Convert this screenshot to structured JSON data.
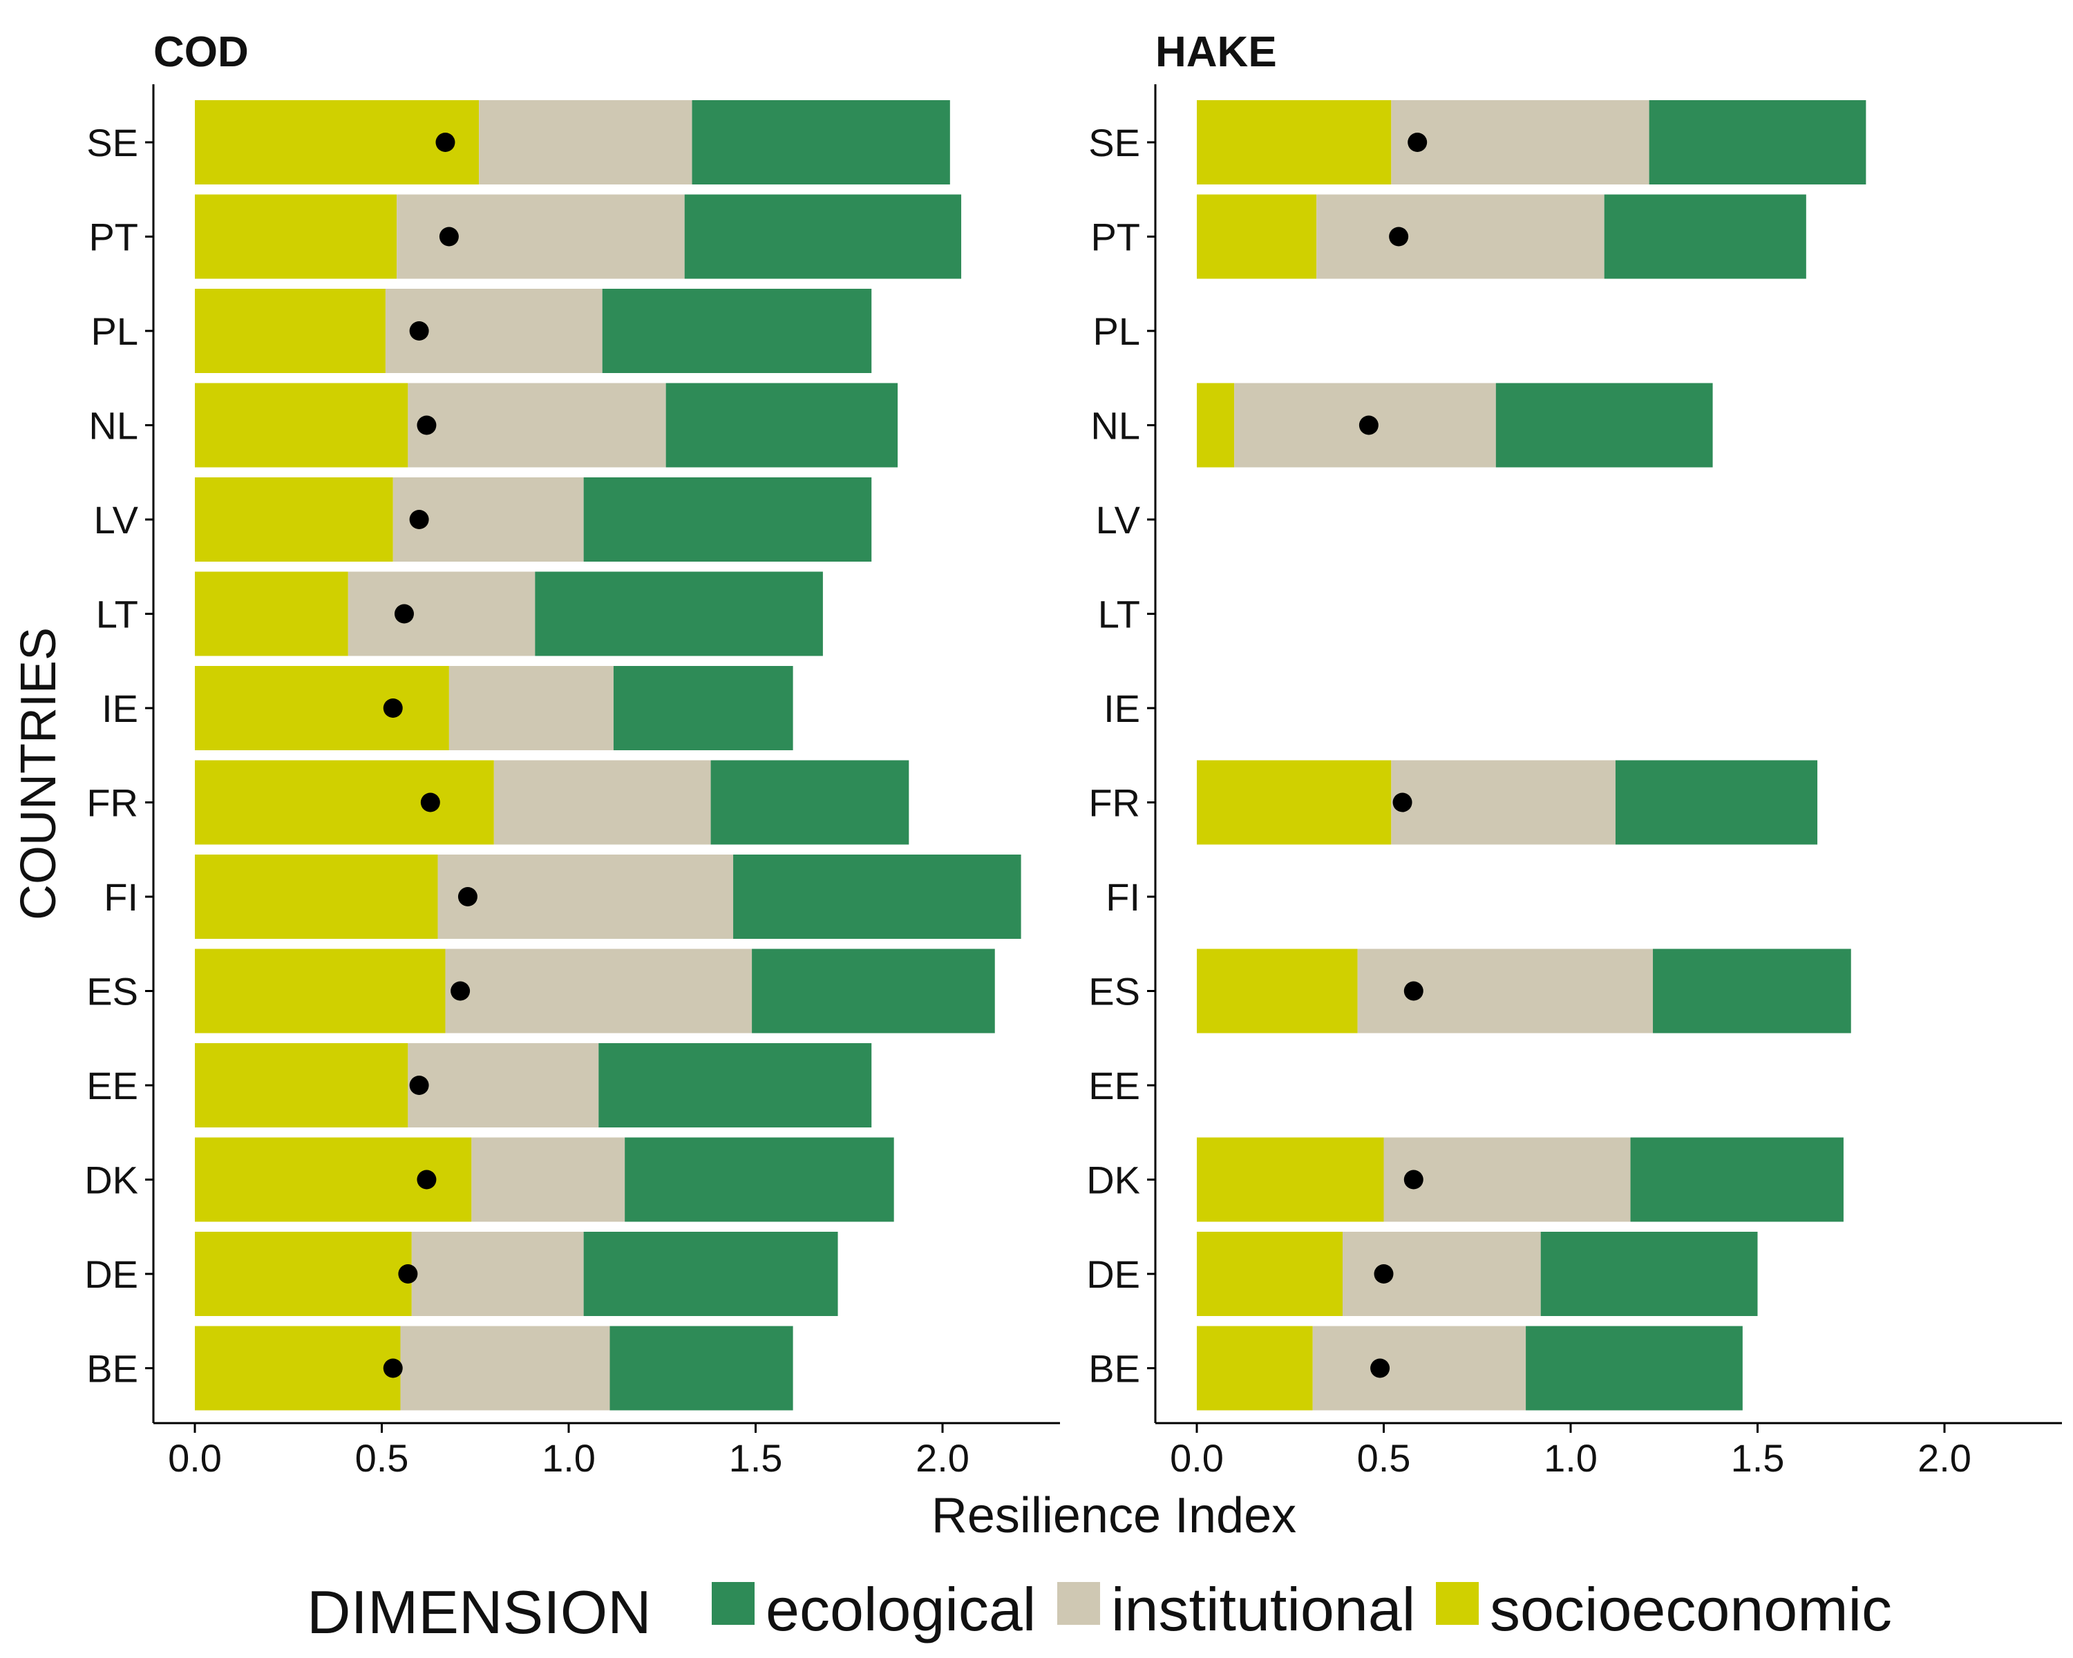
{
  "chart_data": {
    "type": "bar",
    "orientation": "horizontal",
    "stacked": true,
    "xlabel": "Resilience Index",
    "ylabel": "COUNTRIES",
    "xlim": [
      0,
      2.2
    ],
    "xticks": [
      "0.0",
      "0.5",
      "1.0",
      "1.5",
      "2.0"
    ],
    "grid": false,
    "legend": {
      "title": "DIMENSION",
      "position": "bottom",
      "entries": [
        {
          "key": "ecological",
          "label": "ecological",
          "color": "#2e8b57"
        },
        {
          "key": "institutional",
          "label": "institutional",
          "color": "#cfc8b3"
        },
        {
          "key": "socioeconomic",
          "label": "socioeconomic",
          "color": "#d0d000"
        }
      ]
    },
    "point_color": "#000000",
    "categories": [
      "SE",
      "PT",
      "PL",
      "NL",
      "LV",
      "LT",
      "IE",
      "FR",
      "FI",
      "ES",
      "EE",
      "DK",
      "DE",
      "BE"
    ],
    "panels": [
      {
        "title": "COD",
        "rows": [
          {
            "country": "SE",
            "socioeconomic": 0.76,
            "institutional": 0.57,
            "ecological": 0.69,
            "point": 0.67
          },
          {
            "country": "PT",
            "socioeconomic": 0.54,
            "institutional": 0.77,
            "ecological": 0.74,
            "point": 0.68
          },
          {
            "country": "PL",
            "socioeconomic": 0.51,
            "institutional": 0.58,
            "ecological": 0.72,
            "point": 0.6
          },
          {
            "country": "NL",
            "socioeconomic": 0.57,
            "institutional": 0.69,
            "ecological": 0.62,
            "point": 0.62
          },
          {
            "country": "LV",
            "socioeconomic": 0.53,
            "institutional": 0.51,
            "ecological": 0.77,
            "point": 0.6
          },
          {
            "country": "LT",
            "socioeconomic": 0.41,
            "institutional": 0.5,
            "ecological": 0.77,
            "point": 0.56
          },
          {
            "country": "IE",
            "socioeconomic": 0.68,
            "institutional": 0.44,
            "ecological": 0.48,
            "point": 0.53
          },
          {
            "country": "FR",
            "socioeconomic": 0.8,
            "institutional": 0.58,
            "ecological": 0.53,
            "point": 0.63
          },
          {
            "country": "FI",
            "socioeconomic": 0.65,
            "institutional": 0.79,
            "ecological": 0.77,
            "point": 0.73
          },
          {
            "country": "ES",
            "socioeconomic": 0.67,
            "institutional": 0.82,
            "ecological": 0.65,
            "point": 0.71
          },
          {
            "country": "EE",
            "socioeconomic": 0.57,
            "institutional": 0.51,
            "ecological": 0.73,
            "point": 0.6
          },
          {
            "country": "DK",
            "socioeconomic": 0.74,
            "institutional": 0.41,
            "ecological": 0.72,
            "point": 0.62
          },
          {
            "country": "DE",
            "socioeconomic": 0.58,
            "institutional": 0.46,
            "ecological": 0.68,
            "point": 0.57
          },
          {
            "country": "BE",
            "socioeconomic": 0.55,
            "institutional": 0.56,
            "ecological": 0.49,
            "point": 0.53
          }
        ]
      },
      {
        "title": "HAKE",
        "rows": [
          {
            "country": "SE",
            "socioeconomic": 0.52,
            "institutional": 0.69,
            "ecological": 0.58,
            "point": 0.59
          },
          {
            "country": "PT",
            "socioeconomic": 0.32,
            "institutional": 0.77,
            "ecological": 0.54,
            "point": 0.54
          },
          {
            "country": "PL"
          },
          {
            "country": "NL",
            "socioeconomic": 0.1,
            "institutional": 0.7,
            "ecological": 0.58,
            "point": 0.46
          },
          {
            "country": "LV"
          },
          {
            "country": "LT"
          },
          {
            "country": "IE"
          },
          {
            "country": "FR",
            "socioeconomic": 0.52,
            "institutional": 0.6,
            "ecological": 0.54,
            "point": 0.55
          },
          {
            "country": "FI"
          },
          {
            "country": "ES",
            "socioeconomic": 0.43,
            "institutional": 0.79,
            "ecological": 0.53,
            "point": 0.58
          },
          {
            "country": "EE"
          },
          {
            "country": "DK",
            "socioeconomic": 0.5,
            "institutional": 0.66,
            "ecological": 0.57,
            "point": 0.58
          },
          {
            "country": "DE",
            "socioeconomic": 0.39,
            "institutional": 0.53,
            "ecological": 0.58,
            "point": 0.5
          },
          {
            "country": "BE",
            "socioeconomic": 0.31,
            "institutional": 0.57,
            "ecological": 0.58,
            "point": 0.49
          }
        ]
      }
    ]
  }
}
